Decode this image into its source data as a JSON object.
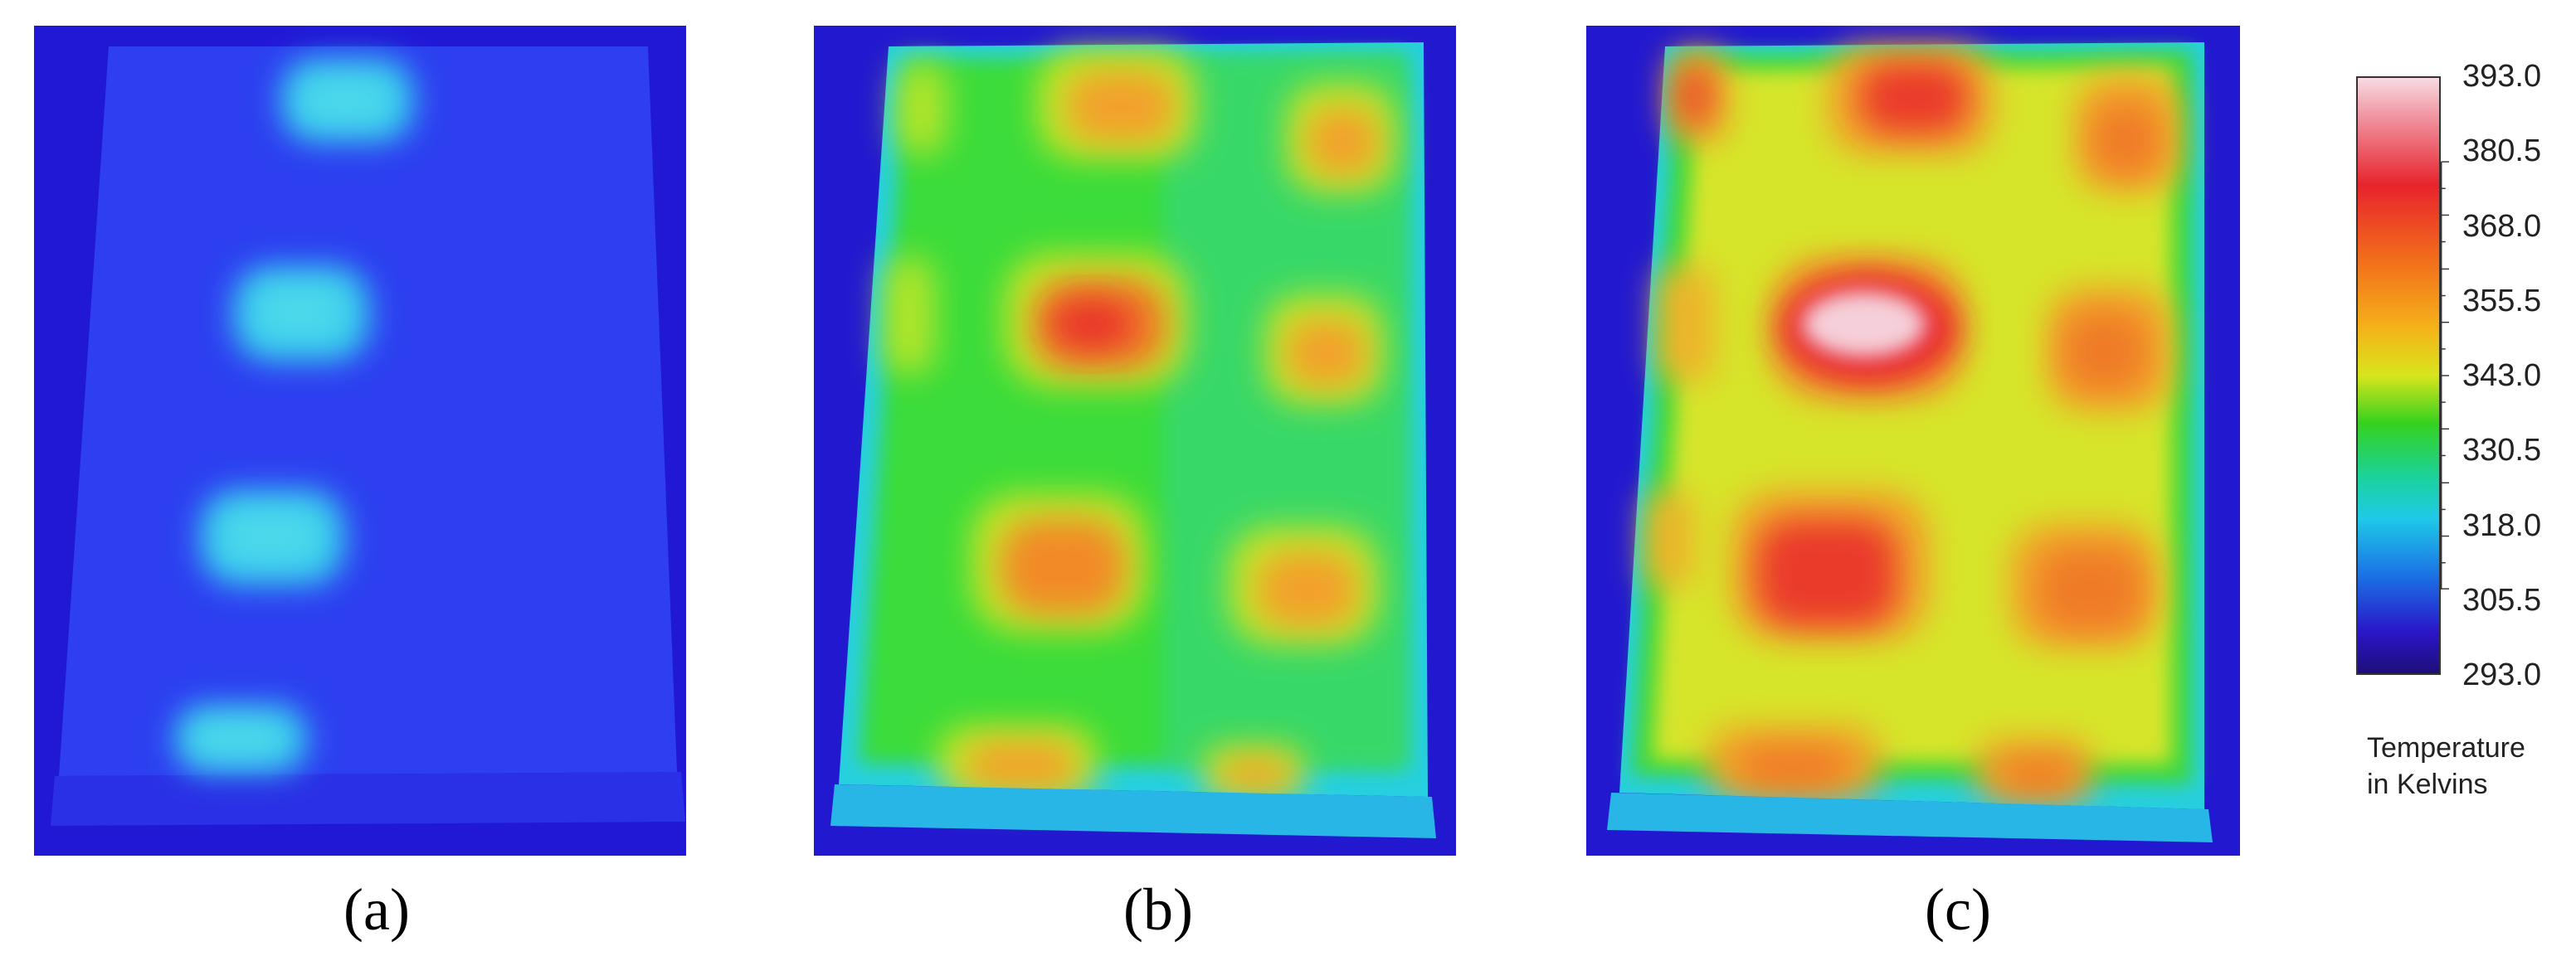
{
  "panels": [
    {
      "id": "a",
      "caption": "(a)"
    },
    {
      "id": "b",
      "caption": "(b)"
    },
    {
      "id": "c",
      "caption": "(c)"
    }
  ],
  "colorbar": {
    "ticks": [
      "393.0",
      "380.5",
      "368.0",
      "355.5",
      "343.0",
      "330.5",
      "318.0",
      "305.5",
      "293.0"
    ],
    "title_line1": "Temperature",
    "title_line2": "in Kelvins",
    "colors": [
      "#f8dbe3",
      "#e8232d",
      "#f26a1c",
      "#f5b219",
      "#35d11f",
      "#1fc9e8",
      "#1b6ee4",
      "#2a16c9",
      "#1e0e78"
    ]
  }
}
